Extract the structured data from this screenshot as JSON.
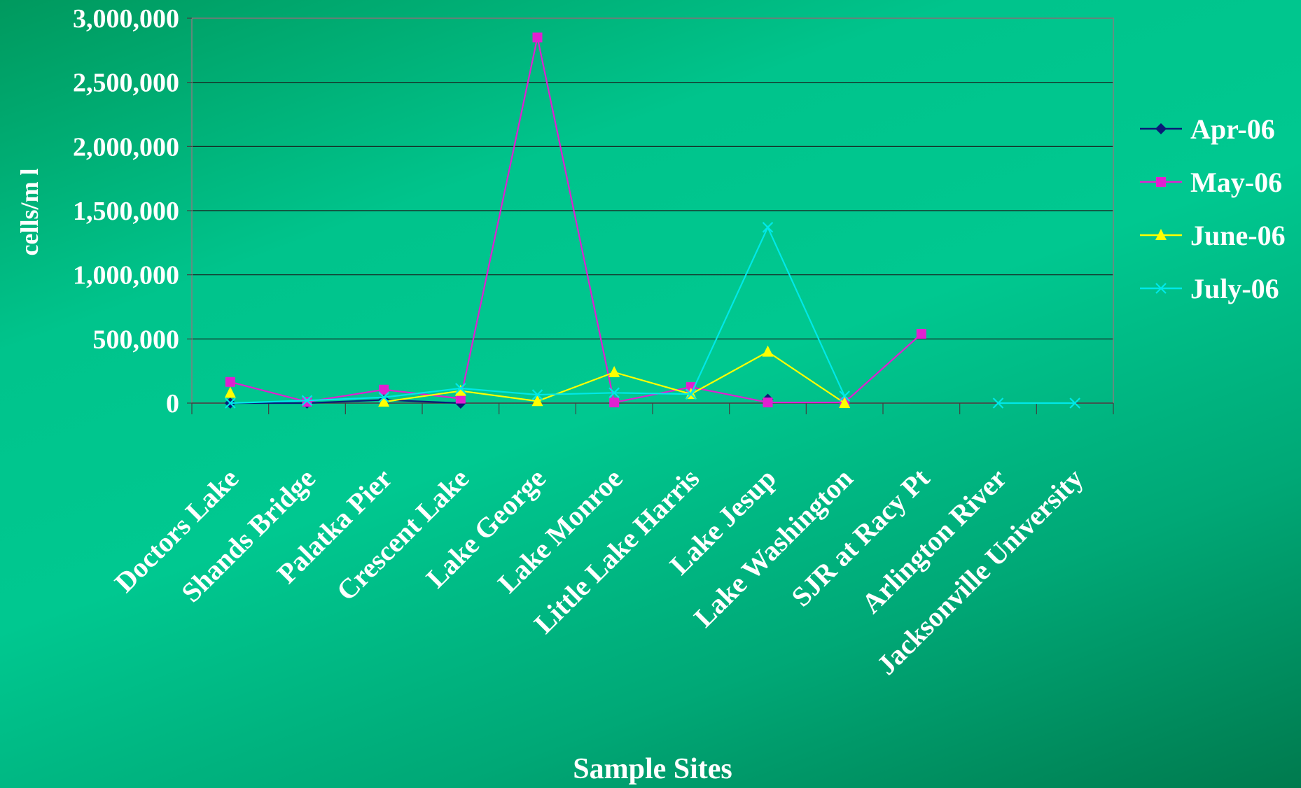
{
  "chart_data": {
    "type": "line",
    "title": "",
    "xlabel": "Sample Sites",
    "ylabel": "cells/m l",
    "ylim": [
      0,
      3000000
    ],
    "yticks": [
      0,
      500000,
      1000000,
      1500000,
      2000000,
      2500000,
      3000000
    ],
    "ytick_labels": [
      "0",
      "500,000",
      "1,000,000",
      "1,500,000",
      "2,000,000",
      "2,500,000",
      "3,000,000"
    ],
    "grid": true,
    "legend_position": "right",
    "categories": [
      "Doctors Lake",
      "Shands Bridge",
      "Palatka Pier",
      "Crescent Lake",
      "Lake George",
      "Lake Monroe",
      "Little Lake Harris",
      "Lake Jesup",
      "Lake Washington",
      "SJR at Racy Pt",
      "Arlington River",
      "Jacksonville University"
    ],
    "series": [
      {
        "name": "Apr-06",
        "color": "#0a1a78",
        "marker": "diamond",
        "values": [
          0,
          0,
          25000,
          0,
          null,
          null,
          null,
          30000,
          null,
          null,
          null,
          null
        ]
      },
      {
        "name": "May-06",
        "color": "#e020d0",
        "marker": "square",
        "values": [
          165000,
          10000,
          105000,
          35000,
          2850000,
          5000,
          125000,
          5000,
          5000,
          540000,
          null,
          null
        ]
      },
      {
        "name": "June-06",
        "color": "#ffff00",
        "marker": "triangle",
        "values": [
          80000,
          null,
          10000,
          95000,
          15000,
          240000,
          70000,
          400000,
          0,
          null,
          null,
          null
        ]
      },
      {
        "name": "July-06",
        "color": "#00e8e8",
        "marker": "x",
        "values": [
          0,
          20000,
          45000,
          115000,
          65000,
          80000,
          70000,
          1370000,
          55000,
          null,
          0,
          0
        ]
      }
    ]
  }
}
